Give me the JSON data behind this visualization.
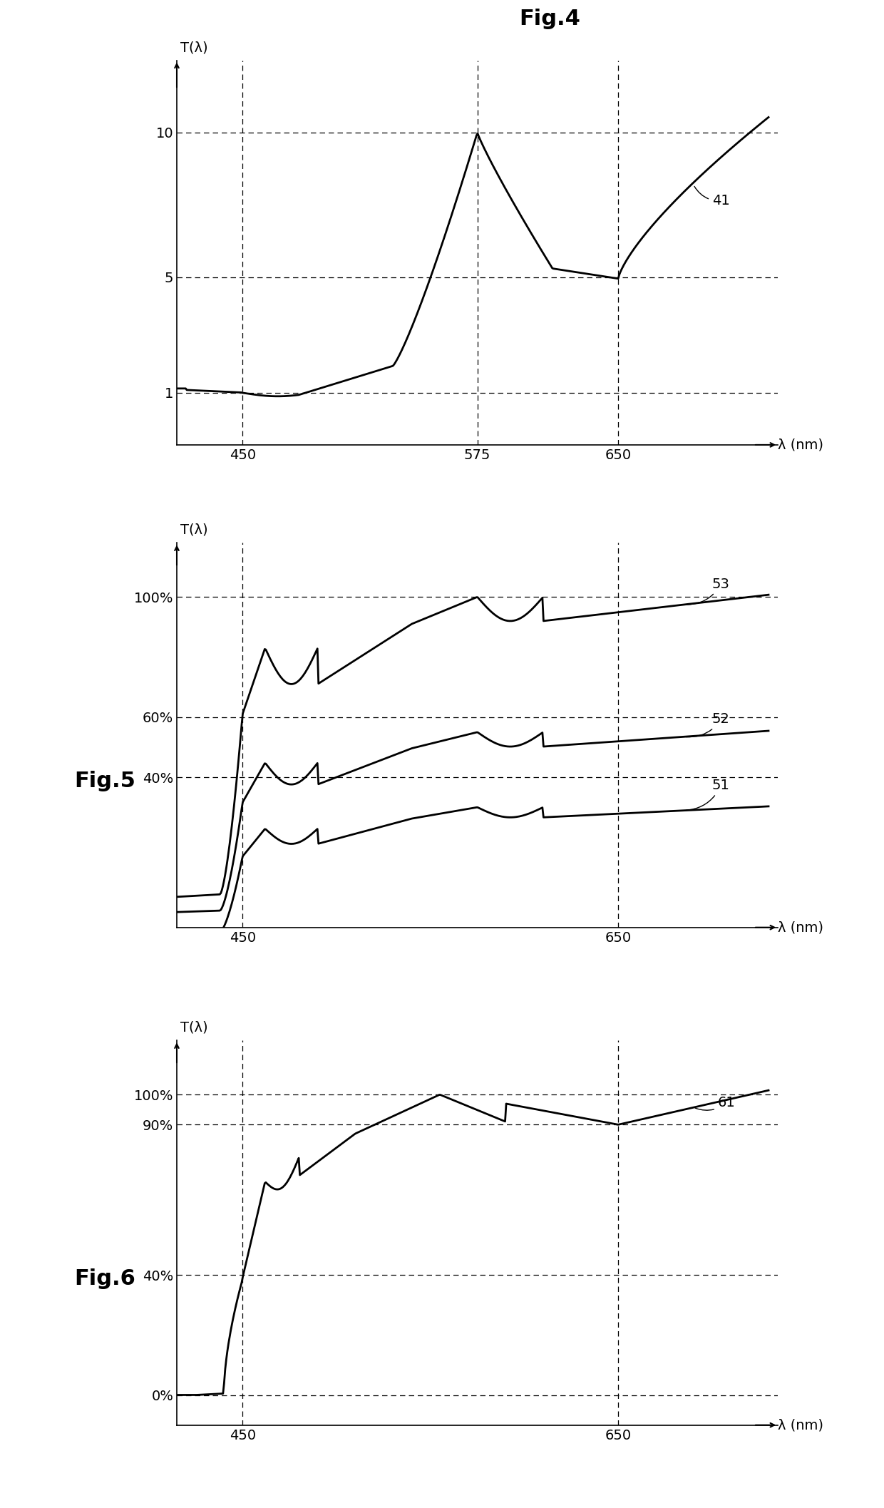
{
  "fig4": {
    "title": "Fig.4",
    "ylabel": "T(λ)",
    "xlabel": "λ (nm)",
    "yticks": [
      1,
      5,
      10
    ],
    "xticks": [
      450,
      575,
      650
    ],
    "label": "41"
  },
  "fig5": {
    "title": "Fig.5",
    "ylabel": "T(λ)",
    "xlabel": "λ (nm)",
    "yticks_labels": [
      "40%",
      "60%",
      "100%"
    ],
    "yticks_vals": [
      0.4,
      0.6,
      1.0
    ],
    "xticks": [
      450,
      650
    ],
    "labels": [
      "51",
      "52",
      "53"
    ]
  },
  "fig6": {
    "title": "Fig.6",
    "ylabel": "T(λ)",
    "xlabel": "λ (nm)",
    "yticks_labels": [
      "0%",
      "40%",
      "90%",
      "100%"
    ],
    "yticks_vals": [
      0.0,
      0.4,
      0.9,
      1.0
    ],
    "xticks": [
      450,
      650
    ],
    "label": "61"
  },
  "curve_color": "#000000",
  "background_color": "#ffffff",
  "line_width": 2.0,
  "font_size": 14,
  "title_font_size": 22
}
